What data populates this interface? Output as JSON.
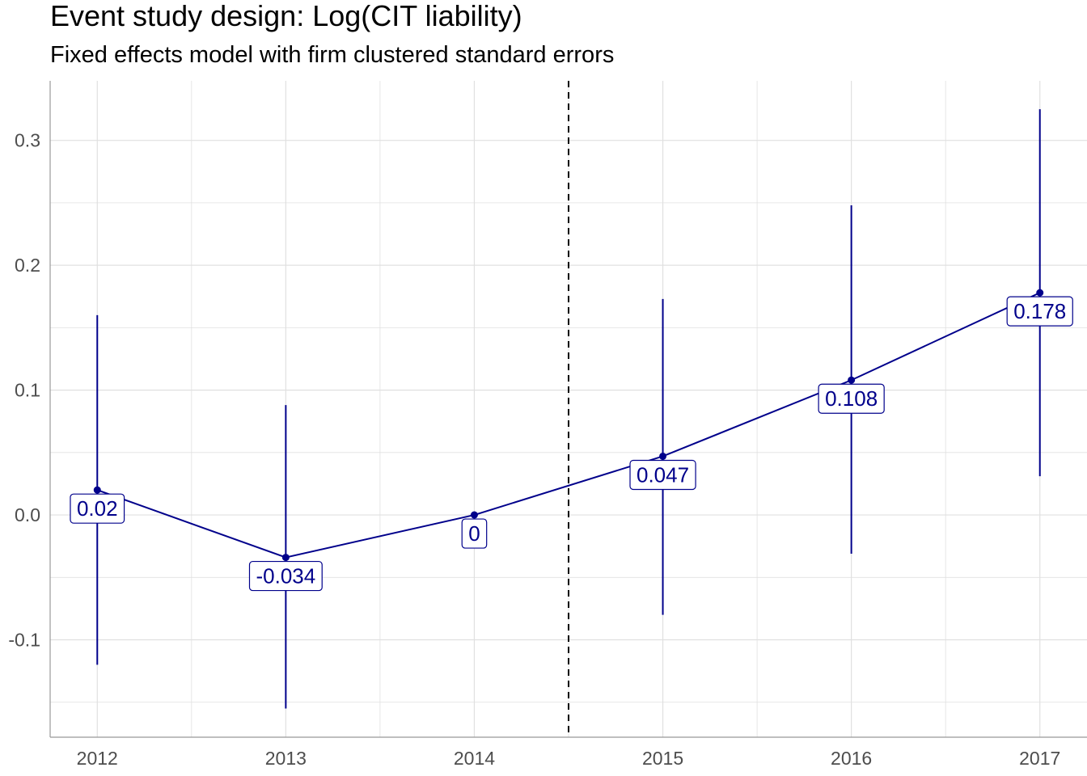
{
  "chart_data": {
    "type": "line",
    "title": "Event study design: Log(CIT liability)",
    "subtitle": "Fixed effects model with firm clustered standard errors",
    "xlabel": "",
    "ylabel": "",
    "x": [
      2012,
      2013,
      2014,
      2015,
      2016,
      2017
    ],
    "x_tick_labels": [
      "2012",
      "2013",
      "2014",
      "2015",
      "2016",
      "2017"
    ],
    "estimate": [
      0.02,
      -0.034,
      0.0,
      0.047,
      0.108,
      0.178
    ],
    "ci_lower": [
      -0.12,
      -0.155,
      0.0,
      -0.08,
      -0.031,
      0.031
    ],
    "ci_upper": [
      0.16,
      0.088,
      0.0,
      0.173,
      0.248,
      0.325
    ],
    "data_labels": [
      "0.02",
      "-0.034",
      "0",
      "0.047",
      "0.108",
      "0.178"
    ],
    "y_ticks": [
      -0.1,
      0.0,
      0.1,
      0.2,
      0.3
    ],
    "y_tick_labels": [
      "-0.1",
      "0.0",
      "0.1",
      "0.2",
      "0.3"
    ],
    "xlim": [
      2011.75,
      2017.25
    ],
    "ylim": [
      -0.178,
      0.3477
    ],
    "reference_line_x": 2014.5,
    "grid": true,
    "legend": "none",
    "colors": {
      "series": "#00008B",
      "grid": "#e0e0e0",
      "reference_line": "#000000",
      "axis": "#999999"
    }
  }
}
